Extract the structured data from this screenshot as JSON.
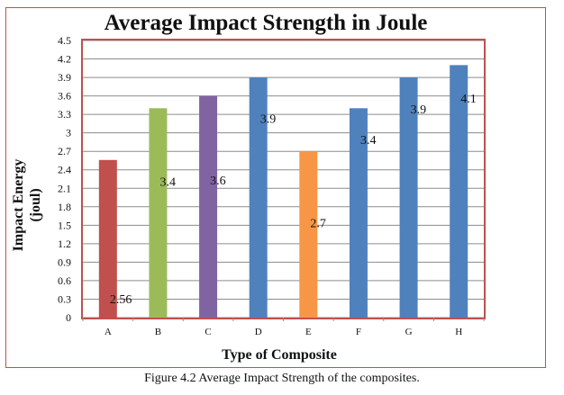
{
  "figure_caption": "Figure 4.2 Average Impact Strength of the composites.",
  "chart_data": {
    "type": "bar",
    "title": "Average Impact Strength in Joule",
    "xlabel": "Type of Composite",
    "ylabel": "Impact Energy\n(joul)",
    "categories": [
      "A",
      "B",
      "C",
      "D",
      "E",
      "F",
      "G",
      "H"
    ],
    "values": [
      2.56,
      3.4,
      3.6,
      3.9,
      2.7,
      3.4,
      3.9,
      4.1
    ],
    "data_labels": [
      "2.56",
      "3.4",
      "3.6",
      "3.9",
      "2.7",
      "3.4",
      "3.9",
      "4.1"
    ],
    "bar_colors": [
      "#c0504d",
      "#9bbb59",
      "#8064a2",
      "#4f81bd",
      "#f79646",
      "#4f81bd",
      "#4f81bd",
      "#4f81bd"
    ],
    "ylim": [
      0,
      4.5
    ],
    "yticks": [
      "0",
      "0.3",
      "0.6",
      "0.9",
      "1.2",
      "1.5",
      "1.8",
      "2.1",
      "2.4",
      "2.7",
      "3",
      "3.3",
      "3.6",
      "3.9",
      "4.2",
      "4.5"
    ],
    "grid": true,
    "legend": "none",
    "plot_border_color": "#c0504d"
  }
}
